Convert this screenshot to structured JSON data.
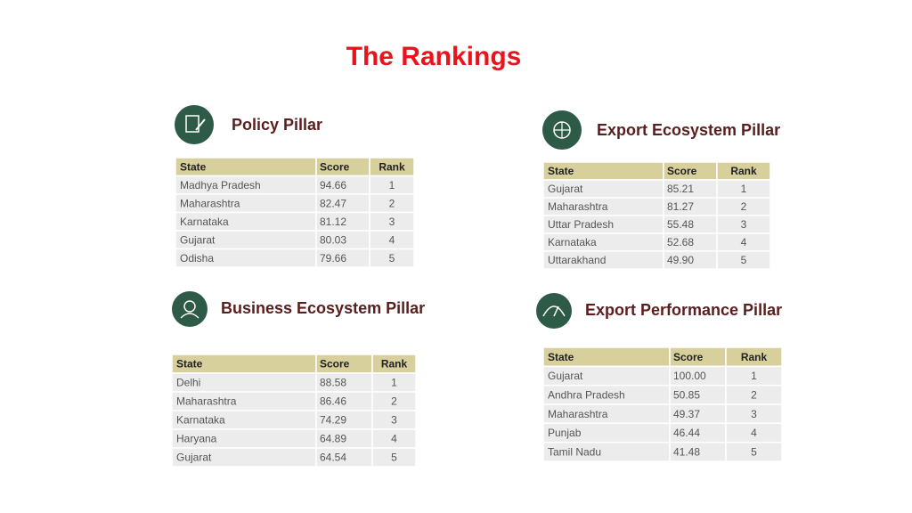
{
  "title": "The Rankings",
  "panels": [
    {
      "heading": "Policy Pillar",
      "columns": [
        "State",
        "Score",
        "Rank"
      ],
      "rows": [
        [
          "Madhya Pradesh",
          "94.66",
          "1"
        ],
        [
          "Maharashtra",
          "82.47",
          "2"
        ],
        [
          "Karnataka",
          "81.12",
          "3"
        ],
        [
          "Gujarat",
          "80.03",
          "4"
        ],
        [
          "Odisha",
          "79.66",
          "5"
        ]
      ]
    },
    {
      "heading": "Export Ecosystem Pillar",
      "columns": [
        "State",
        "Score",
        "Rank"
      ],
      "rows": [
        [
          "Gujarat",
          "85.21",
          "1"
        ],
        [
          "Maharashtra",
          "81.27",
          "2"
        ],
        [
          "Uttar Pradesh",
          "55.48",
          "3"
        ],
        [
          "Karnataka",
          "52.68",
          "4"
        ],
        [
          "Uttarakhand",
          "49.90",
          "5"
        ]
      ]
    },
    {
      "heading": "Business Ecosystem Pillar",
      "columns": [
        "State",
        "Score",
        "Rank"
      ],
      "rows": [
        [
          "Delhi",
          "88.58",
          "1"
        ],
        [
          "Maharashtra",
          "86.46",
          "2"
        ],
        [
          "Karnataka",
          "74.29",
          "3"
        ],
        [
          "Haryana",
          "64.89",
          "4"
        ],
        [
          "Gujarat",
          "64.54",
          "5"
        ]
      ]
    },
    {
      "heading": "Export Performance Pillar",
      "columns": [
        "State",
        "Score",
        "Rank"
      ],
      "rows": [
        [
          "Gujarat",
          "100.00",
          "1"
        ],
        [
          "Andhra Pradesh",
          "50.85",
          "2"
        ],
        [
          "Maharashtra",
          "49.37",
          "3"
        ],
        [
          "Punjab",
          "46.44",
          "4"
        ],
        [
          "Tamil Nadu",
          "41.48",
          "5"
        ]
      ]
    }
  ]
}
